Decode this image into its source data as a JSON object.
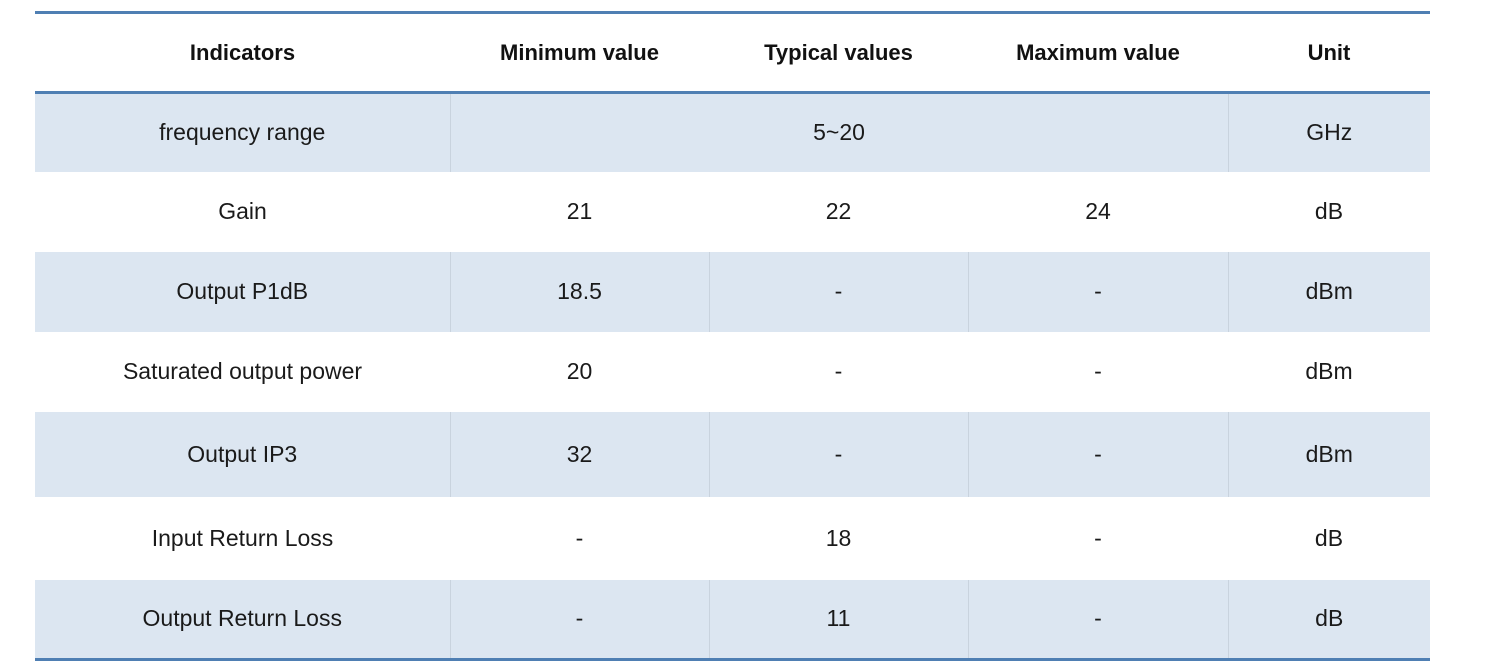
{
  "table": {
    "headers": [
      "Indicators",
      "Minimum value",
      "Typical values",
      "Maximum value",
      "Unit"
    ],
    "frequency_row": {
      "indicator": "frequency range",
      "range": "5~20",
      "unit": "GHz"
    },
    "rows": [
      {
        "indicator": "Gain",
        "min": "21",
        "typ": "22",
        "max": "24",
        "unit": "dB"
      },
      {
        "indicator": "Output P1dB",
        "min": "18.5",
        "typ": "-",
        "max": "-",
        "unit": "dBm"
      },
      {
        "indicator": "Saturated output power",
        "min": "20",
        "typ": "-",
        "max": "-",
        "unit": "dBm"
      },
      {
        "indicator": "Output IP3",
        "min": "32",
        "typ": "-",
        "max": "-",
        "unit": "dBm"
      },
      {
        "indicator": "Input Return Loss",
        "min": "-",
        "typ": "18",
        "max": "-",
        "unit": "dB"
      },
      {
        "indicator": "Output Return Loss",
        "min": "-",
        "typ": "11",
        "max": "-",
        "unit": "dB"
      }
    ]
  }
}
